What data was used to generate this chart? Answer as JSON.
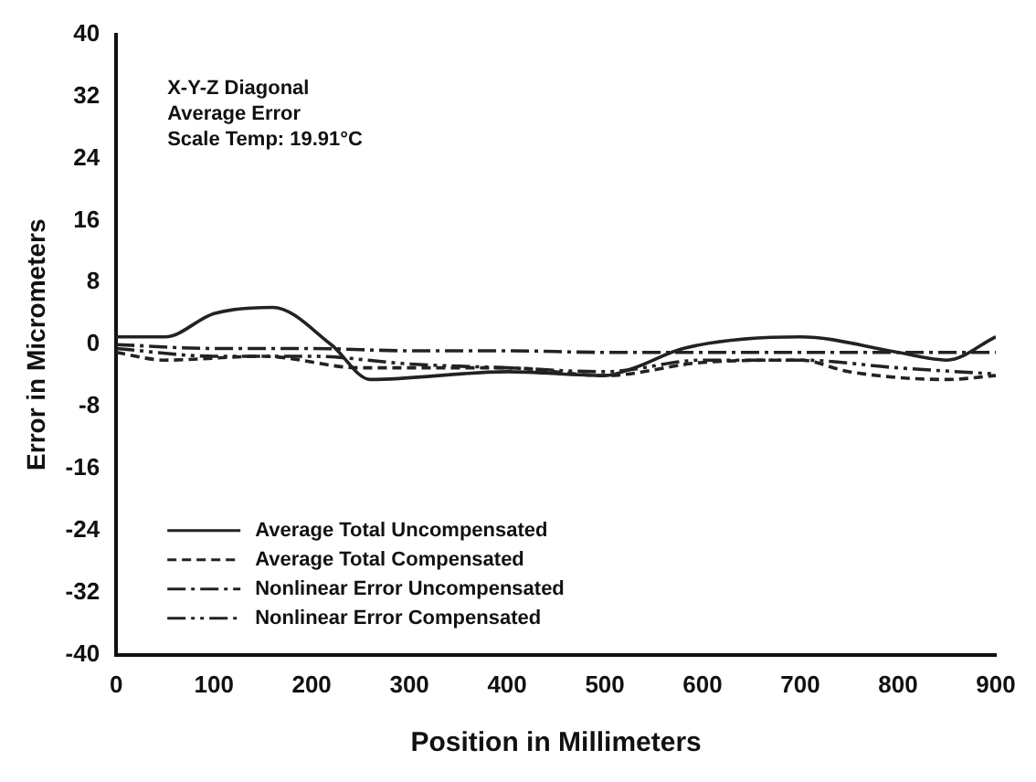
{
  "chart_data": {
    "type": "line",
    "xlabel": "Position in Millimeters",
    "ylabel": "Error in Micrometers",
    "annotations": [
      "X-Y-Z Diagonal",
      "Average Error",
      "Scale Temp: 19.91°C"
    ],
    "xlim": [
      0,
      900
    ],
    "xticks": [
      0,
      100,
      200,
      300,
      400,
      500,
      600,
      700,
      800,
      900
    ],
    "ylim": [
      -40,
      40
    ],
    "yticks": [
      -40,
      -32,
      -24,
      -16,
      -8,
      0,
      8,
      16,
      24,
      32,
      40
    ],
    "grid": false,
    "legend": "bottom left",
    "marker": "none",
    "series": [
      {
        "name": "Average Total Uncompensated",
        "color": "#222222",
        "line_style": "solid",
        "x": [
          0,
          50,
          100,
          160,
          220,
          260,
          400,
          500,
          530,
          580,
          700,
          800,
          850,
          900
        ],
        "values": [
          1,
          1,
          4,
          4.8,
          0,
          -4.5,
          -3.5,
          -4,
          -3,
          -0.5,
          1,
          -1,
          -2,
          1
        ]
      },
      {
        "name": "Average Total Compensated",
        "color": "#222222",
        "line_style": "dashed",
        "x": [
          0,
          50,
          150,
          250,
          400,
          500,
          600,
          700,
          750,
          850,
          900
        ],
        "values": [
          -1,
          -2,
          -1.5,
          -3,
          -3,
          -4,
          -2.3,
          -2,
          -3.5,
          -4.5,
          -4
        ]
      },
      {
        "name": "Nonlinear Error Uncompensated",
        "color": "#222222",
        "line_style": "dashdot",
        "x": [
          0,
          100,
          200,
          300,
          400,
          500,
          600,
          700,
          800,
          900
        ],
        "values": [
          0,
          -0.5,
          -0.5,
          -0.8,
          -0.8,
          -1,
          -1,
          -1,
          -1,
          -1
        ]
      },
      {
        "name": "Nonlinear Error Compensated",
        "color": "#222222",
        "line_style": "dashdotdot",
        "x": [
          0,
          100,
          200,
          300,
          400,
          500,
          600,
          700,
          800,
          900
        ],
        "values": [
          -0.5,
          -1.5,
          -1.5,
          -2.5,
          -3,
          -3.5,
          -2,
          -2,
          -3,
          -3.8
        ]
      }
    ]
  }
}
